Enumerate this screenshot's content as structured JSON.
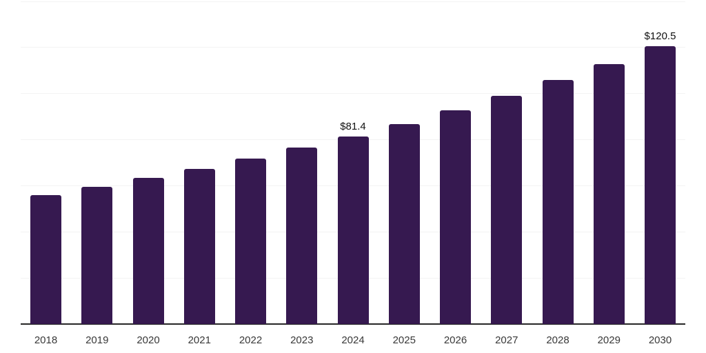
{
  "chart_data": {
    "type": "bar",
    "title": "",
    "xlabel": "",
    "ylabel": "",
    "categories": [
      "2018",
      "2019",
      "2020",
      "2021",
      "2022",
      "2023",
      "2024",
      "2025",
      "2026",
      "2027",
      "2028",
      "2029",
      "2030"
    ],
    "values": [
      56.0,
      59.6,
      63.3,
      67.3,
      71.7,
      76.5,
      81.4,
      86.9,
      92.8,
      99.1,
      105.8,
      112.9,
      120.5
    ],
    "bar_labels": [
      "",
      "",
      "",
      "",
      "",
      "",
      "$81.4",
      "",
      "",
      "",
      "",
      "",
      "$120.5"
    ],
    "ylim": [
      0,
      140
    ],
    "grid_step": 20,
    "grid": true,
    "legend": "none",
    "y_tick_labels_visible": false,
    "colors": {
      "bar": "#361950",
      "gridline": "#f3f3f3",
      "axis_line": "#262626",
      "tick_label": "#383838",
      "value_label": "#111111",
      "background": "#ffffff"
    }
  }
}
